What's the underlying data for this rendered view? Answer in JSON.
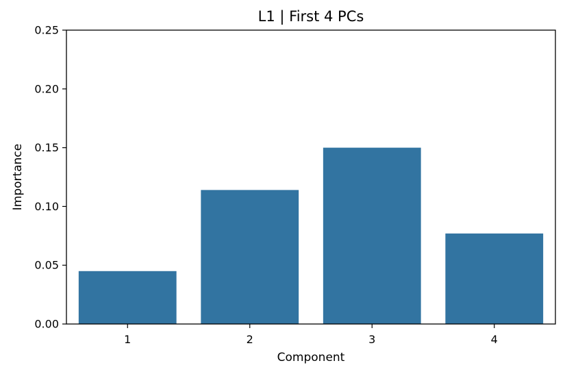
{
  "chart_data": {
    "type": "bar",
    "title": "L1 | First 4 PCs",
    "xlabel": "Component",
    "ylabel": "Importance",
    "categories": [
      "1",
      "2",
      "3",
      "4"
    ],
    "values": [
      0.045,
      0.114,
      0.15,
      0.077
    ],
    "ylim": [
      0,
      0.25
    ],
    "yticks": [
      "0.00",
      "0.05",
      "0.10",
      "0.15",
      "0.20",
      "0.25"
    ],
    "bar_color": "#3274a1",
    "grid": false,
    "legend": "none"
  }
}
